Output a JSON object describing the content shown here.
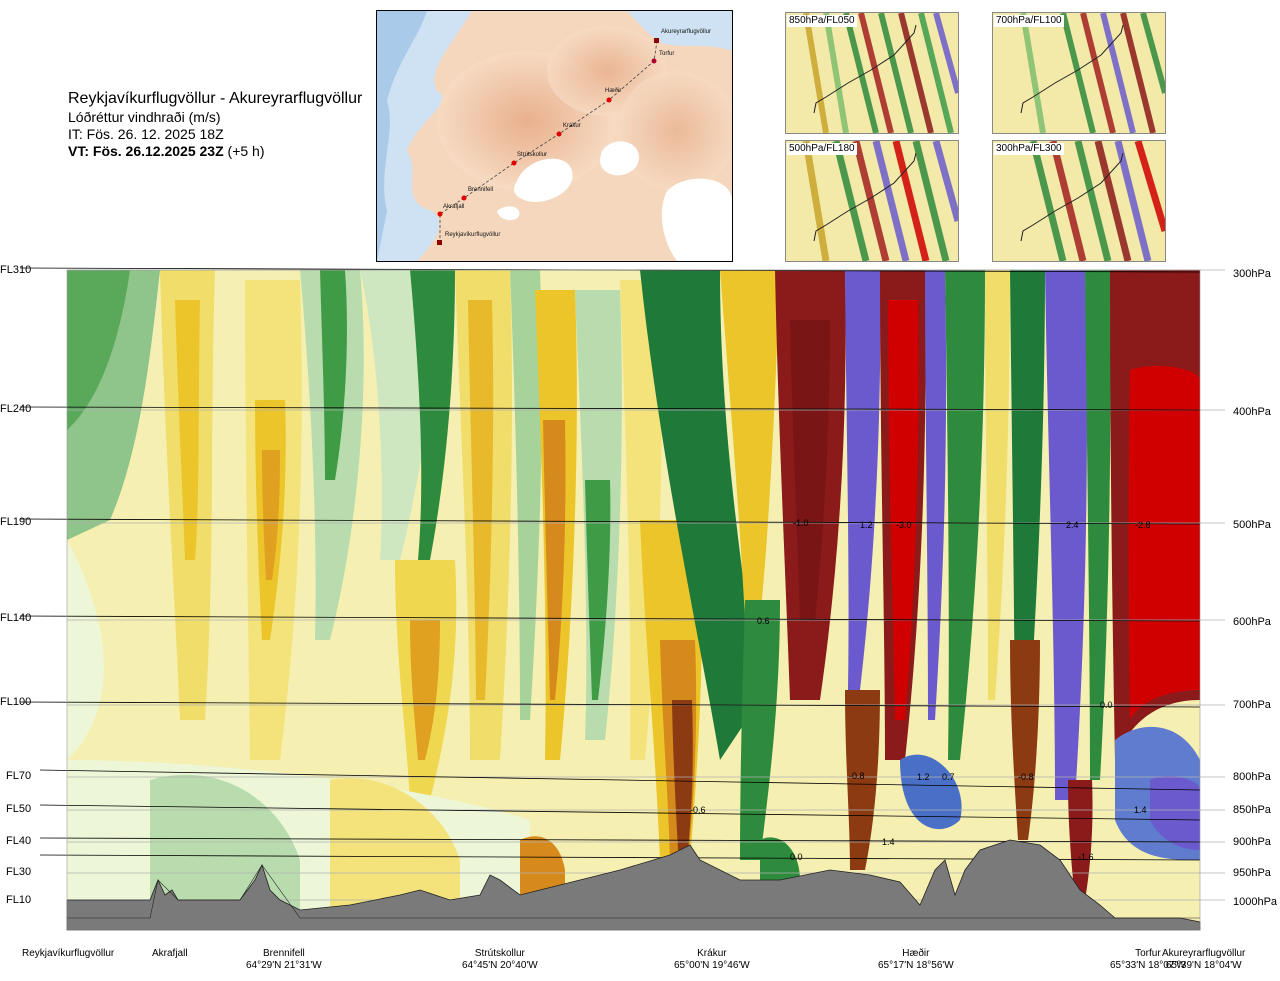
{
  "header": {
    "route": "Reykjavíkurflugvöllur - Akureyrarflugvöllur",
    "parameter": "Lóðréttur vindhraði (m/s)",
    "it": "IT: Fös. 26. 12. 2025 18Z",
    "vt_bold": "VT: Fös. 26.12.2025 23Z",
    "vt_offset": "(+5 h)"
  },
  "route_map": {
    "stations": [
      {
        "name": "Akureyrarflugvöllur"
      },
      {
        "name": "Torfur"
      },
      {
        "name": "Hæðir"
      },
      {
        "name": "Krákur"
      },
      {
        "name": "Strútskollur"
      },
      {
        "name": "Brennifell"
      },
      {
        "name": "Akrafjall"
      },
      {
        "name": "Reykjavíkurflugvöllur"
      }
    ]
  },
  "mini_maps": [
    {
      "label": "850hPa/FL050"
    },
    {
      "label": "700hPa/FL100"
    },
    {
      "label": "500hPa/FL180"
    },
    {
      "label": "300hPa/FL300"
    }
  ],
  "levels": [
    {
      "fl": "FL310",
      "hpa": "300hPa"
    },
    {
      "fl": "FL240",
      "hpa": "400hPa"
    },
    {
      "fl": "FL190",
      "hpa": "500hPa"
    },
    {
      "fl": "FL140",
      "hpa": "600hPa"
    },
    {
      "fl": "FL100",
      "hpa": "700hPa"
    },
    {
      "fl": "FL70",
      "hpa": "800hPa"
    },
    {
      "fl": "FL50",
      "hpa": "850hPa"
    },
    {
      "fl": "FL40",
      "hpa": "900hPa"
    },
    {
      "fl": "FL30",
      "hpa": "950hPa"
    },
    {
      "fl": "FL10",
      "hpa": "1000hPa"
    }
  ],
  "contour_values": [
    "-1.0",
    "1.2",
    "-3.0",
    "2.4",
    "-2.8",
    "0.0",
    "0.6",
    "-0.8",
    "1.2",
    "0.7",
    "-0.8",
    "-0.6",
    "1.4",
    "1.4",
    "0.0",
    "-1.6"
  ],
  "stations": [
    {
      "name": "Reykjavíkurflugvöllur",
      "coord": ""
    },
    {
      "name": "Akrafjall",
      "coord": ""
    },
    {
      "name": "Brennifell",
      "coord": "64°29'N 21°31'W"
    },
    {
      "name": "Strútskollur",
      "coord": "64°45'N 20°40'W"
    },
    {
      "name": "Krákur",
      "coord": "65°00'N 19°46'W"
    },
    {
      "name": "Hæðir",
      "coord": "65°17'N 18°56'W"
    },
    {
      "name": "Torfur",
      "coord": "65°33'N 18°07'W"
    },
    {
      "name": "Akureyrarflugvöllur",
      "coord": "65°39'N 18°04'W"
    }
  ],
  "colors": {
    "strong_down": "#8b1a1a",
    "down": "#d00000",
    "up_strong": "#6a5acd",
    "up": "#1f7a3a",
    "neutral": "#f5f0b0",
    "terrain": "#7a7a7a"
  }
}
